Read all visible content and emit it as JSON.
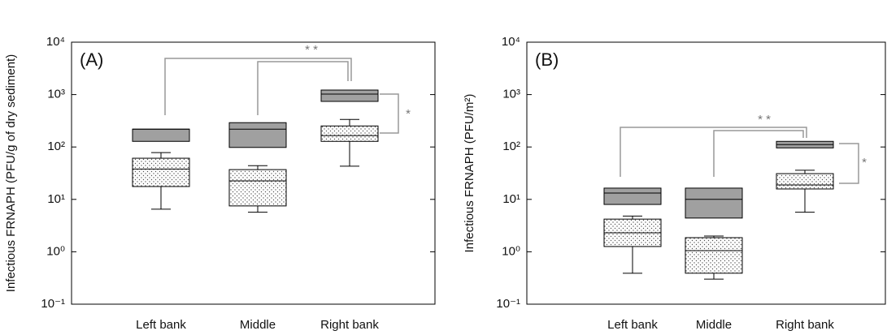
{
  "chart_data": [
    {
      "type": "box",
      "panel_label": "(A)",
      "y_label": "Infectious FRNAPH (PFU/g of dry sediment)",
      "log_y": true,
      "ylim": [
        0.1,
        10000
      ],
      "yticks": [
        {
          "value": 0.1,
          "label": "10⁻¹"
        },
        {
          "value": 1,
          "label": "10⁰"
        },
        {
          "value": 10,
          "label": "10¹"
        },
        {
          "value": 100,
          "label": "10²"
        },
        {
          "value": 1000,
          "label": "10³"
        },
        {
          "value": 10000,
          "label": "10⁴"
        }
      ],
      "categories": [
        "Left bank",
        "Middle",
        "Right bank"
      ],
      "series": [
        {
          "color": "#a0a0a0",
          "pattern": "solid",
          "boxes": [
            {
              "q1": 128,
              "median": 219,
              "q3": 219
            },
            {
              "q1": 98,
              "median": 219,
              "q3": 291
            },
            {
              "q1": 741,
              "median": 1020,
              "q3": 1220
            }
          ]
        },
        {
          "color": "#ffffff",
          "pattern": "dots",
          "boxes": [
            {
              "min": 6.5,
              "q1": 17.6,
              "median": 38,
              "q3": 61,
              "max": 78
            },
            {
              "min": 5.7,
              "q1": 7.5,
              "median": 22.5,
              "q3": 37,
              "max": 44
            },
            {
              "min": 43,
              "q1": 128,
              "median": 165,
              "q3": 252,
              "max": 336
            }
          ]
        }
      ],
      "annotations": [
        "* *",
        "*"
      ]
    },
    {
      "type": "box",
      "panel_label": "(B)",
      "y_label": "Infectious FRNAPH (PFU/m²)",
      "log_y": true,
      "ylim": [
        0.1,
        10000
      ],
      "yticks": [
        {
          "value": 0.1,
          "label": "10⁻¹"
        },
        {
          "value": 1,
          "label": "10⁰"
        },
        {
          "value": 10,
          "label": "10¹"
        },
        {
          "value": 100,
          "label": "10²"
        },
        {
          "value": 1000,
          "label": "10³"
        },
        {
          "value": 10000,
          "label": "10⁴"
        }
      ],
      "categories": [
        "Left bank",
        "Middle",
        "Right bank"
      ],
      "series": [
        {
          "color": "#a0a0a0",
          "pattern": "solid",
          "boxes": [
            {
              "q1": 8.0,
              "median": 13.2,
              "q3": 16.4
            },
            {
              "q1": 4.4,
              "median": 10,
              "q3": 16.4
            },
            {
              "q1": 96,
              "median": 111,
              "q3": 128
            }
          ]
        },
        {
          "color": "#ffffff",
          "pattern": "dots",
          "boxes": [
            {
              "min": 0.39,
              "q1": 1.26,
              "median": 2.3,
              "q3": 4.2,
              "max": 4.8
            },
            {
              "min": 0.3,
              "q1": 0.39,
              "median": 1.05,
              "q3": 1.86,
              "max": 2.0
            },
            {
              "min": 5.7,
              "q1": 15.8,
              "median": 18.9,
              "q3": 31,
              "max": 36
            }
          ]
        }
      ],
      "annotations": [
        "* *",
        "*"
      ]
    }
  ]
}
